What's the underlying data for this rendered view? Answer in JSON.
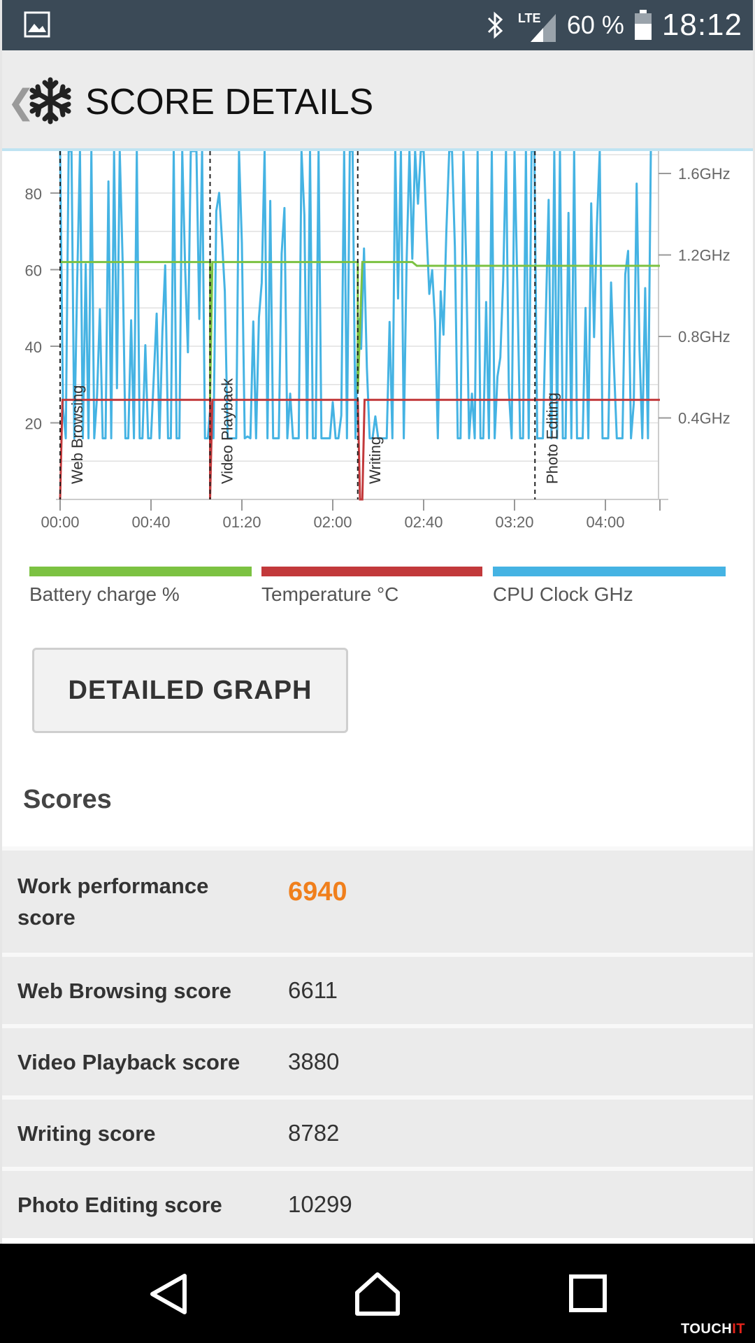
{
  "status_bar": {
    "network": "LTE",
    "battery_percent": "60 %",
    "time": "18:12",
    "icons": [
      "gallery-icon",
      "bluetooth-icon",
      "signal-icon",
      "battery-icon"
    ]
  },
  "header": {
    "title": "SCORE DETAILS",
    "back_glyph": "❮",
    "app_icon": "snowflake-icon"
  },
  "chart_data": {
    "type": "line",
    "x_ticks": [
      "00:00",
      "00:40",
      "01:20",
      "02:00",
      "02:40",
      "03:20",
      "04:00"
    ],
    "y_left_ticks": [
      "20",
      "40",
      "60",
      "80"
    ],
    "y_left_range": [
      0,
      90
    ],
    "y_right_ticks": [
      "0.4GHz",
      "0.8GHz",
      "1.2GHz",
      "1.6GHz"
    ],
    "y_right_range_ghz": [
      0,
      1.7
    ],
    "x_range_minutes": [
      0,
      264
    ],
    "grid": true,
    "section_markers": [
      {
        "label": "Web Browsing",
        "minute": 0
      },
      {
        "label": "Video Playback",
        "minute": 66
      },
      {
        "label": "Writing",
        "minute": 131
      },
      {
        "label": "Photo Editing",
        "minute": 209
      }
    ],
    "series": [
      {
        "name": "Battery charge %",
        "color": "#7cc242",
        "points": [
          [
            0,
            62
          ],
          [
            66,
            62
          ],
          [
            66,
            26
          ],
          [
            67,
            62
          ],
          [
            131,
            62
          ],
          [
            131,
            28
          ],
          [
            133,
            62
          ],
          [
            155,
            62
          ],
          [
            157,
            61
          ],
          [
            264,
            61
          ]
        ]
      },
      {
        "name": "Temperature °C",
        "color": "#c2393b",
        "points": [
          [
            0,
            0
          ],
          [
            1,
            26
          ],
          [
            66,
            26
          ],
          [
            66,
            0
          ],
          [
            67,
            26
          ],
          [
            131,
            26
          ],
          [
            132,
            0
          ],
          [
            133,
            0
          ],
          [
            134,
            26
          ],
          [
            264,
            26
          ]
        ]
      },
      {
        "name": "CPU Clock GHz",
        "color": "#45b3e3",
        "y_axis": "right"
      }
    ]
  },
  "legend": [
    {
      "label": "Battery charge %",
      "color": "#7cc242"
    },
    {
      "label": "Temperature °C",
      "color": "#c2393b"
    },
    {
      "label": "CPU Clock GHz",
      "color": "#45b3e3"
    }
  ],
  "button": {
    "label": "DETAILED GRAPH"
  },
  "scores": {
    "title": "Scores",
    "rows": [
      {
        "label": "Work performance\nscore",
        "value": "6940",
        "highlight": true
      },
      {
        "label": "Web Browsing score",
        "value": "6611"
      },
      {
        "label": "Video Playback score",
        "value": "3880"
      },
      {
        "label": "Writing score",
        "value": "8782"
      },
      {
        "label": "Photo Editing score",
        "value": "10299"
      }
    ]
  },
  "nav_bar": {
    "icons": [
      "nav-back-icon",
      "nav-home-icon",
      "nav-recent-icon"
    ],
    "watermark_a": "TOUCH",
    "watermark_b": "IT"
  }
}
